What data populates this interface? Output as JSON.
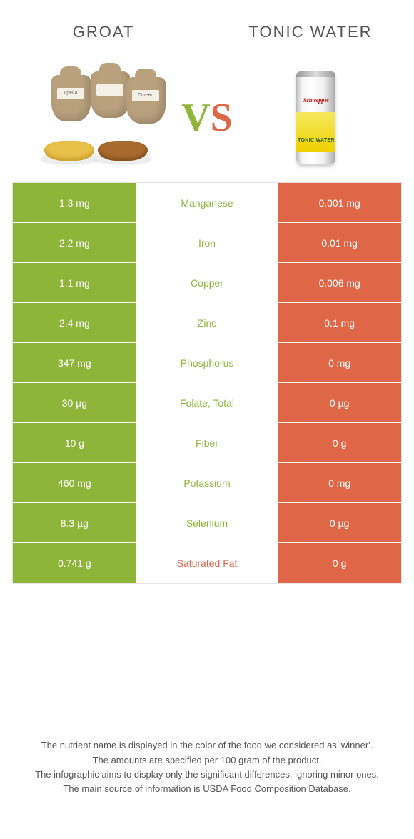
{
  "header": {
    "left": "Groat",
    "right": "Tonic water"
  },
  "vs": {
    "v": "V",
    "s": "S"
  },
  "hero": {
    "can_logo": "Schweppes",
    "can_text": "TONIC WATER"
  },
  "colors": {
    "green": "#8fb43a",
    "orange": "#e06648",
    "mid_green_text": "#8fb43a",
    "mid_orange_text": "#e06648"
  },
  "rows": [
    {
      "left": "1.3 mg",
      "label": "Manganese",
      "right": "0.001 mg",
      "winner": "left"
    },
    {
      "left": "2.2 mg",
      "label": "Iron",
      "right": "0.01 mg",
      "winner": "left"
    },
    {
      "left": "1.1 mg",
      "label": "Copper",
      "right": "0.006 mg",
      "winner": "left"
    },
    {
      "left": "2.4 mg",
      "label": "Zinc",
      "right": "0.1 mg",
      "winner": "left"
    },
    {
      "left": "347 mg",
      "label": "Phosphorus",
      "right": "0 mg",
      "winner": "left"
    },
    {
      "left": "30 µg",
      "label": "Folate, total",
      "right": "0 µg",
      "winner": "left"
    },
    {
      "left": "10 g",
      "label": "Fiber",
      "right": "0 g",
      "winner": "left"
    },
    {
      "left": "460 mg",
      "label": "Potassium",
      "right": "0 mg",
      "winner": "left"
    },
    {
      "left": "8.3 µg",
      "label": "Selenium",
      "right": "0 µg",
      "winner": "left"
    },
    {
      "left": "0.741 g",
      "label": "Saturated fat",
      "right": "0 g",
      "winner": "right"
    }
  ],
  "footer": {
    "line1": "The nutrient name is displayed in the color of the food we considered as 'winner'.",
    "line2": "The amounts are specified per 100 gram of the product.",
    "line3": "The infographic aims to display only the significant differences, ignoring minor ones.",
    "line4": "The main source of information is USDA Food Composition Database."
  }
}
